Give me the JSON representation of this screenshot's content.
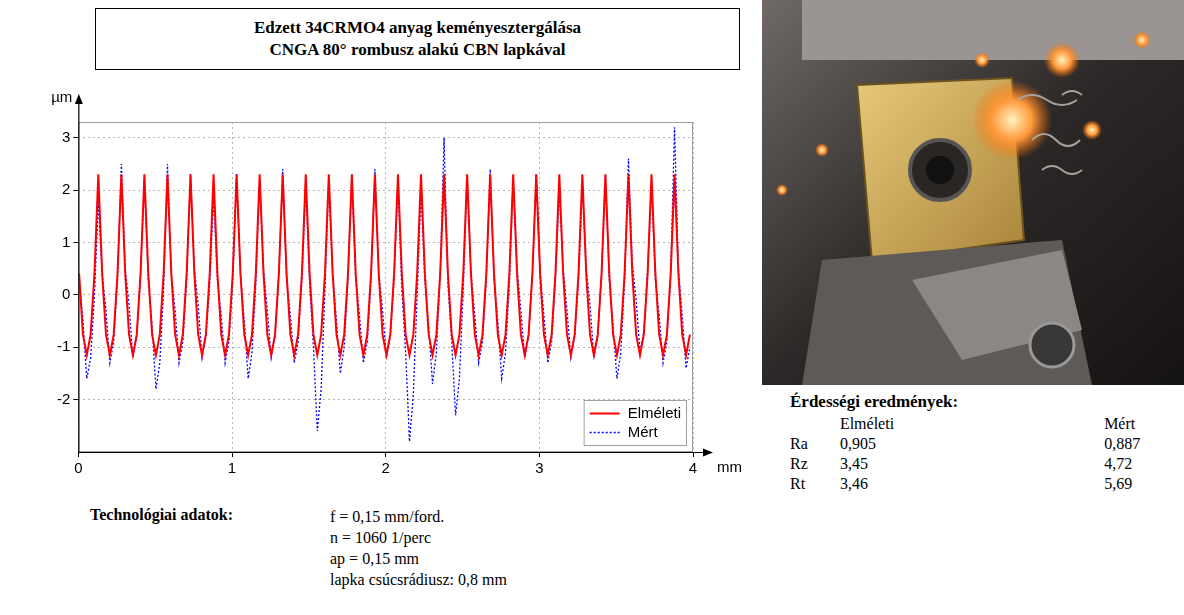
{
  "header": {
    "lines": [
      "Edzett 34CRMO4 anyag keményesztergálása",
      "CNGA 80° rombusz alakú CBN lapkával"
    ]
  },
  "chart_data": {
    "type": "line",
    "x_label": "mm",
    "y_label": "µm",
    "x": [
      0.005,
      0.03,
      0.055,
      0.08,
      0.105,
      0.13,
      0.155,
      0.18,
      0.205,
      0.23,
      0.255,
      0.28,
      0.305,
      0.33,
      0.355,
      0.38,
      0.405,
      0.43,
      0.455,
      0.48,
      0.505,
      0.53,
      0.555,
      0.58,
      0.605,
      0.63,
      0.655,
      0.68,
      0.705,
      0.73,
      0.755,
      0.78,
      0.805,
      0.83,
      0.855,
      0.88,
      0.905,
      0.93,
      0.955,
      0.98,
      1.005,
      1.03,
      1.055,
      1.08,
      1.105,
      1.13,
      1.155,
      1.18,
      1.205,
      1.23,
      1.255,
      1.28,
      1.305,
      1.33,
      1.355,
      1.38,
      1.405,
      1.43,
      1.455,
      1.48,
      1.505,
      1.53,
      1.555,
      1.58,
      1.605,
      1.63,
      1.655,
      1.68,
      1.705,
      1.73,
      1.755,
      1.78,
      1.805,
      1.83,
      1.855,
      1.88,
      1.905,
      1.93,
      1.955,
      1.98,
      2.005,
      2.03,
      2.055,
      2.08,
      2.105,
      2.13,
      2.155,
      2.18,
      2.205,
      2.23,
      2.255,
      2.28,
      2.305,
      2.33,
      2.355,
      2.38,
      2.405,
      2.43,
      2.455,
      2.48,
      2.505,
      2.53,
      2.555,
      2.58,
      2.605,
      2.63,
      2.655,
      2.68,
      2.705,
      2.73,
      2.755,
      2.78,
      2.805,
      2.83,
      2.855,
      2.88,
      2.905,
      2.93,
      2.955,
      2.98,
      3.005,
      3.03,
      3.055,
      3.08,
      3.105,
      3.13,
      3.155,
      3.18,
      3.205,
      3.23,
      3.255,
      3.28,
      3.305,
      3.33,
      3.355,
      3.38,
      3.405,
      3.43,
      3.455,
      3.48,
      3.505,
      3.53,
      3.555,
      3.58,
      3.605,
      3.63,
      3.655,
      3.68,
      3.705,
      3.73,
      3.755,
      3.78,
      3.805,
      3.83,
      3.855,
      3.88,
      3.905,
      3.93,
      3.955,
      3.98
    ],
    "series": [
      {
        "name": "Elméleti",
        "color": "#ff0000",
        "line_style": "solid",
        "values": [
          0.41,
          -0.76,
          -1.15,
          -0.76,
          0.41,
          2.3,
          0.41,
          -0.76,
          -1.15,
          -0.76,
          0.41,
          2.3,
          0.41,
          -0.76,
          -1.15,
          -0.76,
          0.41,
          2.3,
          0.41,
          -0.76,
          -1.15,
          -0.76,
          0.41,
          2.3,
          0.41,
          -0.76,
          -1.15,
          -0.76,
          0.41,
          2.3,
          0.41,
          -0.76,
          -1.15,
          -0.76,
          0.41,
          2.3,
          0.41,
          -0.76,
          -1.15,
          -0.76,
          0.41,
          2.3,
          0.41,
          -0.76,
          -1.15,
          -0.76,
          0.41,
          2.3,
          0.41,
          -0.76,
          -1.15,
          -0.76,
          0.41,
          2.3,
          0.41,
          -0.76,
          -1.15,
          -0.76,
          0.41,
          2.3,
          0.41,
          -0.76,
          -1.15,
          -0.76,
          0.41,
          2.3,
          0.41,
          -0.76,
          -1.15,
          -0.76,
          0.41,
          2.3,
          0.41,
          -0.76,
          -1.15,
          -0.76,
          0.41,
          2.3,
          0.41,
          -0.76,
          -1.15,
          -0.76,
          0.41,
          2.3,
          0.41,
          -0.76,
          -1.15,
          -0.76,
          0.41,
          2.3,
          0.41,
          -0.76,
          -1.15,
          -0.76,
          0.41,
          2.3,
          0.41,
          -0.76,
          -1.15,
          -0.76,
          0.41,
          2.3,
          0.41,
          -0.76,
          -1.15,
          -0.76,
          0.41,
          2.3,
          0.41,
          -0.76,
          -1.15,
          -0.76,
          0.41,
          2.3,
          0.41,
          -0.76,
          -1.15,
          -0.76,
          0.41,
          2.3,
          0.41,
          -0.76,
          -1.15,
          -0.76,
          0.41,
          2.3,
          0.41,
          -0.76,
          -1.15,
          -0.76,
          0.41,
          2.3,
          0.41,
          -0.76,
          -1.15,
          -0.76,
          0.41,
          2.3,
          0.41,
          -0.76,
          -1.15,
          -0.76,
          0.41,
          2.3,
          0.41,
          -0.76,
          -1.15,
          -0.76,
          0.41,
          2.3,
          0.41,
          -0.76,
          -1.15,
          -0.76,
          0.41,
          2.3,
          0.41,
          -0.76,
          -1.15,
          -0.76
        ]
      },
      {
        "name": "Mért",
        "color": "#0000ff",
        "line_style": "dotted",
        "values": [
          0.3,
          -0.5,
          -1.6,
          -1.2,
          0.0,
          1.8,
          0.4,
          -0.3,
          -1.3,
          -0.9,
          0.3,
          2.5,
          0.5,
          -0.2,
          -1.2,
          -0.8,
          0.4,
          2.2,
          0.3,
          -0.6,
          -1.8,
          -1.3,
          0.1,
          2.5,
          0.4,
          -0.3,
          -1.3,
          -0.9,
          0.3,
          2.3,
          0.5,
          -0.2,
          -1.2,
          -0.8,
          0.2,
          1.9,
          0.3,
          -0.4,
          -1.3,
          -0.9,
          0.3,
          2.3,
          0.4,
          -0.5,
          -1.6,
          -1.1,
          0.2,
          2.2,
          0.5,
          -0.3,
          -1.2,
          -0.8,
          0.4,
          2.4,
          0.3,
          -0.4,
          -1.3,
          -0.9,
          0.3,
          2.1,
          0.2,
          -1.0,
          -2.6,
          -1.8,
          0.1,
          2.2,
          0.4,
          -0.5,
          -1.5,
          -1.0,
          0.3,
          2.3,
          0.3,
          -0.4,
          -1.3,
          -0.9,
          0.3,
          2.4,
          0.4,
          -0.3,
          -1.2,
          -0.8,
          0.3,
          2.2,
          0.1,
          -1.1,
          -2.8,
          -1.9,
          0.0,
          2.0,
          0.3,
          -0.6,
          -1.7,
          -1.1,
          0.4,
          3.0,
          0.2,
          -0.9,
          -2.3,
          -1.6,
          0.1,
          2.3,
          0.4,
          -0.4,
          -1.3,
          -0.9,
          0.3,
          2.4,
          0.3,
          -0.5,
          -1.6,
          -1.1,
          0.2,
          2.2,
          0.5,
          -0.3,
          -1.2,
          -0.8,
          0.4,
          2.3,
          0.4,
          -0.4,
          -1.3,
          -0.9,
          0.3,
          2.0,
          0.5,
          -0.3,
          -1.2,
          -0.8,
          0.3,
          2.1,
          0.5,
          -0.2,
          -1.2,
          -0.8,
          0.4,
          2.3,
          0.3,
          -0.6,
          -1.6,
          -1.1,
          0.3,
          2.6,
          0.6,
          -0.1,
          -1.1,
          -0.7,
          0.5,
          2.1,
          0.3,
          -0.4,
          -1.3,
          -0.9,
          0.4,
          3.2,
          0.5,
          -0.4,
          -1.4,
          -1.0
        ]
      }
    ],
    "xlim": [
      0,
      4
    ],
    "xticks": [
      0,
      1,
      2,
      3,
      4
    ],
    "ylim": [
      -3,
      3.3
    ],
    "yticks": [
      -2,
      -1,
      0,
      1,
      2,
      3
    ],
    "grid": true,
    "legend": "lower right"
  },
  "technological_data": {
    "label": "Technológiai adatok:",
    "items": [
      "f = 0,15 mm/ford.",
      "n = 1060 1/perc",
      "ap = 0,15 mm",
      "lapka csúcsrádiusz: 0,8 mm"
    ]
  },
  "roughness_results": {
    "title": "Érdességi eredmények:",
    "columns": [
      "Elméleti",
      "Mért"
    ],
    "rows": [
      [
        "Ra",
        "0,905",
        "0,887"
      ],
      [
        "Rz",
        "3,45",
        "4,72"
      ],
      [
        "Rt",
        "3,46",
        "5,69"
      ]
    ]
  }
}
